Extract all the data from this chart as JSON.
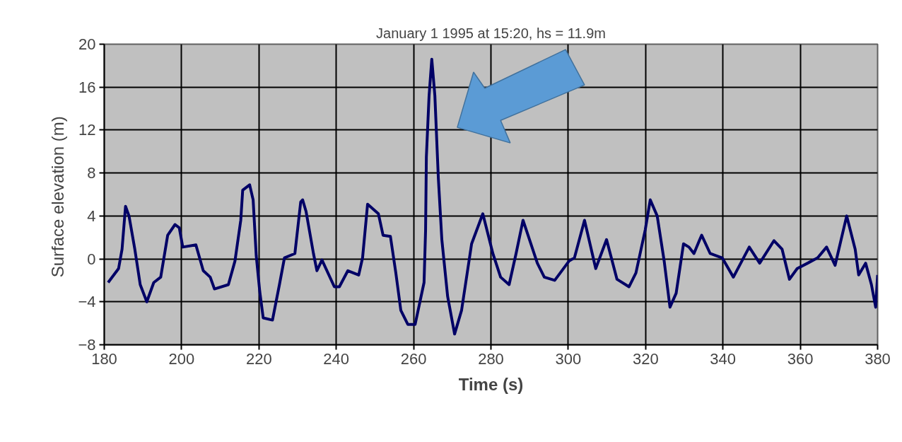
{
  "chart_data": {
    "type": "line",
    "title": "January 1 1995 at 15:20, hs = 11.9m",
    "xlabel": "Time (s)",
    "ylabel": "Surface elevation  (m)",
    "xlim": [
      180,
      380
    ],
    "xticks": [
      180,
      200,
      220,
      240,
      260,
      280,
      300,
      320,
      340,
      360,
      380
    ],
    "ylim": [
      -8,
      20
    ],
    "yticks": [
      -8,
      -4,
      0,
      4,
      8,
      12,
      16,
      20
    ],
    "grid": true,
    "line_style": "solid",
    "marker": "none",
    "series": [
      {
        "color": "#000066",
        "x": [
          181,
          183.7,
          184.6,
          185.5,
          186.4,
          187.9,
          189.3,
          191,
          192.8,
          194.6,
          196.4,
          198.3,
          199.4,
          200.3,
          203.7,
          205.6,
          207.4,
          208.5,
          212.1,
          213.8,
          215.3,
          215.8,
          217.6,
          218.5,
          219.3,
          220.2,
          221.1,
          223.5,
          225.3,
          226.6,
          229.3,
          230.8,
          231.3,
          232.2,
          234.1,
          235,
          236.3,
          239.5,
          240.8,
          243,
          245.8,
          246.8,
          248.1,
          250.9,
          252.1,
          254,
          255.4,
          256.7,
          258.5,
          260.4,
          262.7,
          263.1,
          263.3,
          264,
          264.7,
          265.5,
          266.4,
          267.3,
          268.8,
          270.6,
          272.4,
          275,
          277.9,
          280.5,
          282.5,
          284.7,
          286.5,
          288.3,
          292,
          293.8,
          296.5,
          300.2,
          301.6,
          304.2,
          307.1,
          309.9,
          312.6,
          315.7,
          317.5,
          319.9,
          321.2,
          323,
          324.8,
          326.3,
          327.9,
          329.8,
          331.2,
          332.5,
          334,
          334.5,
          336.7,
          339.8,
          342.7,
          346.8,
          349.5,
          353.2,
          355.3,
          357.2,
          359.2,
          361.9,
          364.5,
          366.8,
          369,
          372,
          374.2,
          375.1,
          376.9,
          378.4,
          379.5,
          380
        ],
        "values": [
          -2.2,
          -0.9,
          0.9,
          4.9,
          4.0,
          0.9,
          -2.4,
          -4.0,
          -2.2,
          -1.7,
          2.2,
          3.2,
          2.9,
          1.1,
          1.3,
          -1.1,
          -1.7,
          -2.8,
          -2.4,
          -0.2,
          3.6,
          6.4,
          6.9,
          5.5,
          0.3,
          -3.0,
          -5.5,
          -5.7,
          -2.4,
          0.1,
          0.5,
          5.3,
          5.5,
          4.4,
          0.5,
          -1.1,
          -0.1,
          -2.6,
          -2.6,
          -1.1,
          -1.5,
          0.1,
          5.1,
          4.2,
          2.2,
          2.1,
          -1.3,
          -4.8,
          -6.1,
          -6.1,
          -2.2,
          2.7,
          9.5,
          15.2,
          18.6,
          15.2,
          7.5,
          1.8,
          -3.5,
          -7.0,
          -4.8,
          1.4,
          4.2,
          0.5,
          -1.7,
          -2.4,
          0.5,
          3.6,
          -0.4,
          -1.7,
          -2.0,
          -0.2,
          0.1,
          3.6,
          -0.9,
          1.8,
          -1.9,
          -2.6,
          -1.3,
          2.7,
          5.5,
          4.0,
          -0.2,
          -4.5,
          -3.2,
          1.4,
          1.1,
          0.5,
          1.8,
          2.2,
          0.5,
          0.1,
          -1.7,
          1.1,
          -0.4,
          1.7,
          0.9,
          -1.9,
          -0.9,
          -0.4,
          0.1,
          1.1,
          -0.6,
          4.0,
          0.9,
          -1.5,
          -0.4,
          -2.4,
          -4.5,
          -1.5
        ]
      }
    ]
  }
}
